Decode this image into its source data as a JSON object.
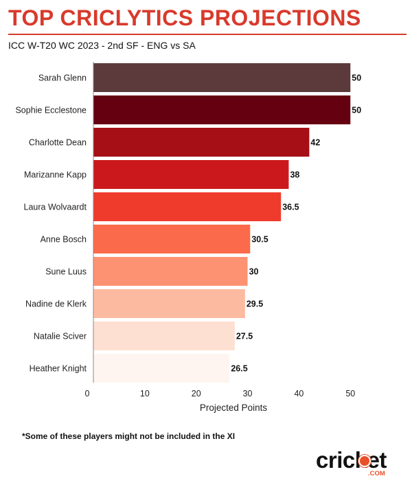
{
  "header": {
    "title": "TOP CRICLYTICS PROJECTIONS",
    "subtitle": "ICC W-T20 WC 2023 - 2nd SF - ENG vs SA"
  },
  "chart_data": {
    "type": "bar",
    "orientation": "horizontal",
    "categories": [
      "Sarah Glenn",
      "Sophie Ecclestone",
      "Charlotte Dean",
      "Marizanne Kapp",
      "Laura Wolvaardt",
      "Anne Bosch",
      "Sune Luus",
      "Nadine de Klerk",
      "Natalie Sciver",
      "Heather Knight"
    ],
    "values": [
      50,
      50,
      42,
      38,
      36.5,
      30.5,
      30,
      29.5,
      27.5,
      26.5
    ],
    "value_labels": [
      "50",
      "50",
      "42",
      "38",
      "36.5",
      "30.5",
      "30",
      "29.5",
      "27.5",
      "26.5"
    ],
    "colors": [
      "#5c3a3c",
      "#650010",
      "#a50f15",
      "#cb181d",
      "#ef3b2c",
      "#fb6a4a",
      "#fc9272",
      "#fcbba1",
      "#fee0d2",
      "#fff5f0"
    ],
    "xlabel": "Projected Points",
    "xlim": [
      0,
      52.5
    ],
    "xticks": [
      0,
      10,
      20,
      30,
      40,
      50
    ],
    "grid": false
  },
  "footnote": "*Some of these players might not be included in the XI",
  "logo": {
    "name": "cricket-com-logo",
    "text": "cricket",
    "suffix": ".COM",
    "accent_color": "#e8502a"
  }
}
